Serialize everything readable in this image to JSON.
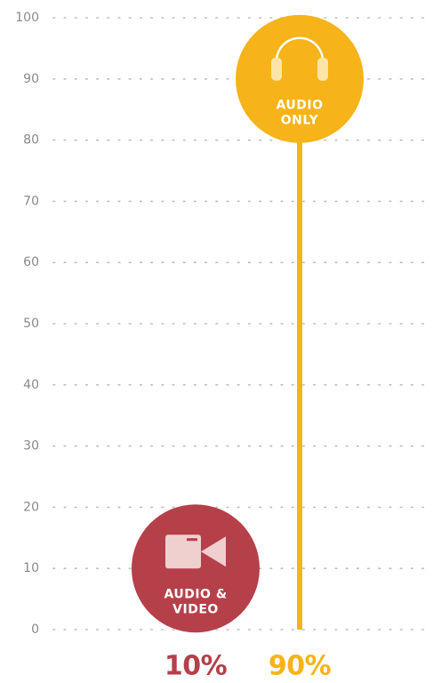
{
  "chart_data": {
    "type": "lollipop",
    "categories": [
      "AUDIO &\nVIDEO",
      "AUDIO\nONLY"
    ],
    "values": [
      10,
      90
    ],
    "value_labels": [
      "10%",
      "90%"
    ],
    "colors": [
      "#b5404a",
      "#f6b31a"
    ],
    "ylim": [
      0,
      100
    ],
    "yticks": [
      0,
      10,
      20,
      30,
      40,
      50,
      60,
      70,
      80,
      90,
      100
    ],
    "grid": true
  }
}
